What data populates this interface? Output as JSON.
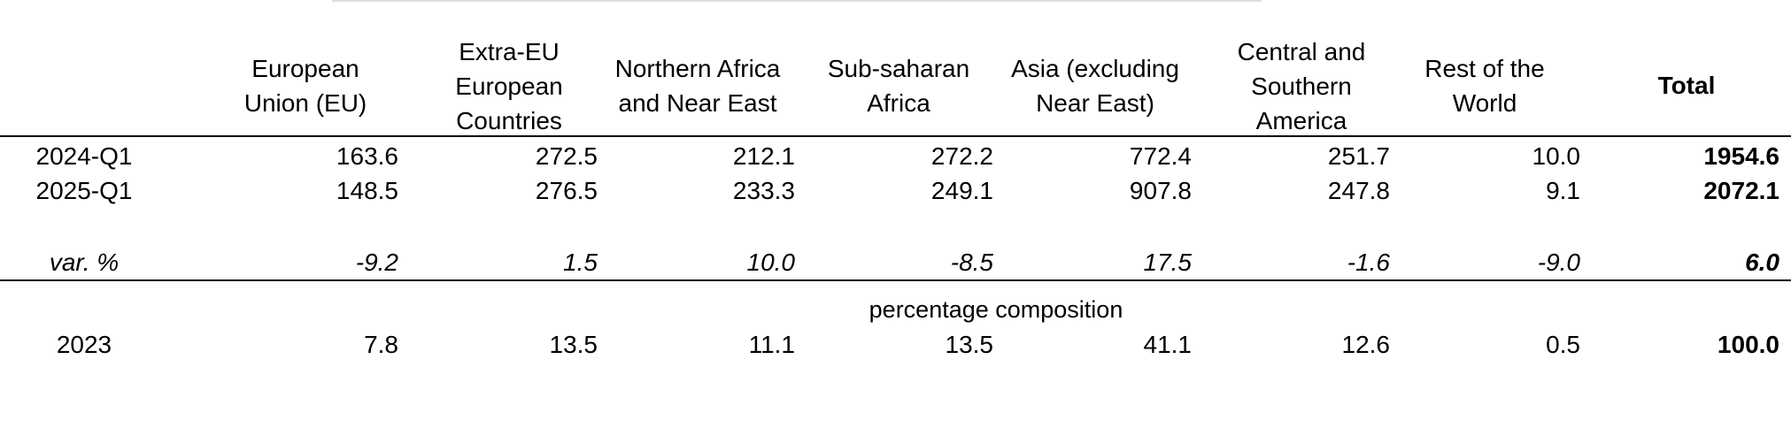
{
  "table": {
    "headers": [
      "European Union (EU)",
      "Extra-EU European Countries",
      "Northern Africa and Near East",
      "Sub-saharan Africa",
      "Asia (excluding Near East)",
      "Central and Southern America",
      "Rest of the World",
      "Total"
    ],
    "rows": [
      {
        "label": "2024-Q1",
        "values": [
          "163.6",
          "272.5",
          "212.1",
          "272.2",
          "772.4",
          "251.7",
          "10.0"
        ],
        "total": "1954.6"
      },
      {
        "label": "2025-Q1",
        "values": [
          "148.5",
          "276.5",
          "233.3",
          "249.1",
          "907.8",
          "247.8",
          "9.1"
        ],
        "total": "2072.1"
      }
    ],
    "var_row": {
      "label": "var. %",
      "values": [
        "-9.2",
        "1.5",
        "10.0",
        "-8.5",
        "17.5",
        "-1.6",
        "-9.0"
      ],
      "total": "6.0"
    },
    "section_label": "percentage composition",
    "comp_row": {
      "label": "2023",
      "values": [
        "7.8",
        "13.5",
        "11.1",
        "13.5",
        "41.1",
        "12.6",
        "0.5"
      ],
      "total": "100.0"
    }
  }
}
